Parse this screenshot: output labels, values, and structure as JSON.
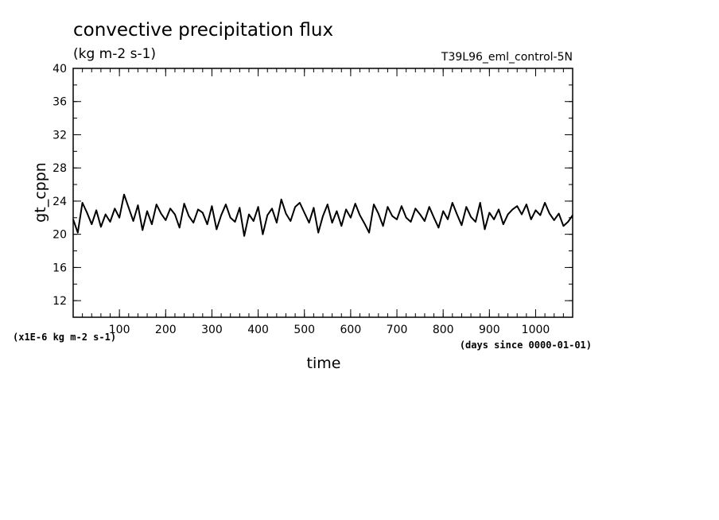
{
  "chart_data": {
    "type": "line",
    "title": "convective precipitation flux",
    "subtitle": "(kg m-2 s-1)",
    "run_label": "T39L96_eml_control-5N",
    "xlabel": "time",
    "x_units": "(days since 0000-01-01)",
    "ylabel": "gt_cppn",
    "y_scale_note": "(x1E-6 kg m-2 s-1)",
    "xlim": [
      0,
      1080
    ],
    "ylim": [
      10,
      40
    ],
    "x_ticks": [
      100,
      200,
      300,
      400,
      500,
      600,
      700,
      800,
      900,
      1000
    ],
    "y_ticks": [
      12,
      16,
      20,
      24,
      28,
      32,
      36,
      40
    ],
    "grid": false,
    "series": [
      {
        "x": [
          0,
          10,
          20,
          30,
          40,
          50,
          60,
          70,
          80,
          90,
          100,
          110,
          120,
          130,
          140,
          150,
          160,
          170,
          180,
          190,
          200,
          210,
          220,
          230,
          240,
          250,
          260,
          270,
          280,
          290,
          300,
          310,
          320,
          330,
          340,
          350,
          360,
          370,
          380,
          390,
          400,
          410,
          420,
          430,
          440,
          450,
          460,
          470,
          480,
          490,
          500,
          510,
          520,
          530,
          540,
          550,
          560,
          570,
          580,
          590,
          600,
          610,
          620,
          630,
          640,
          650,
          660,
          670,
          680,
          690,
          700,
          710,
          720,
          730,
          740,
          750,
          760,
          770,
          780,
          790,
          800,
          810,
          820,
          830,
          840,
          850,
          860,
          870,
          880,
          890,
          900,
          910,
          920,
          930,
          940,
          950,
          960,
          970,
          980,
          990,
          1000,
          1010,
          1020,
          1030,
          1040,
          1050,
          1060,
          1070,
          1080
        ],
        "y": [
          21.8,
          20.2,
          23.8,
          22.6,
          21.2,
          22.9,
          20.9,
          22.4,
          21.5,
          23.1,
          22.0,
          24.8,
          23.2,
          21.6,
          23.5,
          20.5,
          22.8,
          21.2,
          23.6,
          22.5,
          21.7,
          23.1,
          22.4,
          20.8,
          23.7,
          22.2,
          21.4,
          23.0,
          22.6,
          21.2,
          23.4,
          20.6,
          22.3,
          23.6,
          22.0,
          21.5,
          23.2,
          19.8,
          22.4,
          21.6,
          23.3,
          20.0,
          22.3,
          23.1,
          21.4,
          24.2,
          22.5,
          21.6,
          23.3,
          23.8,
          22.6,
          21.4,
          23.2,
          20.2,
          22.2,
          23.6,
          21.4,
          22.8,
          21.0,
          23.0,
          22.0,
          23.7,
          22.3,
          21.3,
          20.2,
          23.6,
          22.5,
          21.0,
          23.3,
          22.2,
          21.8,
          23.4,
          22.0,
          21.5,
          23.1,
          22.4,
          21.6,
          23.3,
          22.0,
          20.8,
          22.8,
          21.8,
          23.8,
          22.4,
          21.1,
          23.3,
          22.1,
          21.5,
          23.8,
          20.6,
          22.6,
          21.8,
          23.0,
          21.2,
          22.4,
          23.0,
          23.4,
          22.4,
          23.6,
          21.8,
          22.9,
          22.3,
          23.8,
          22.5,
          21.7,
          22.5,
          21.0,
          21.5,
          22.3
        ]
      }
    ]
  }
}
